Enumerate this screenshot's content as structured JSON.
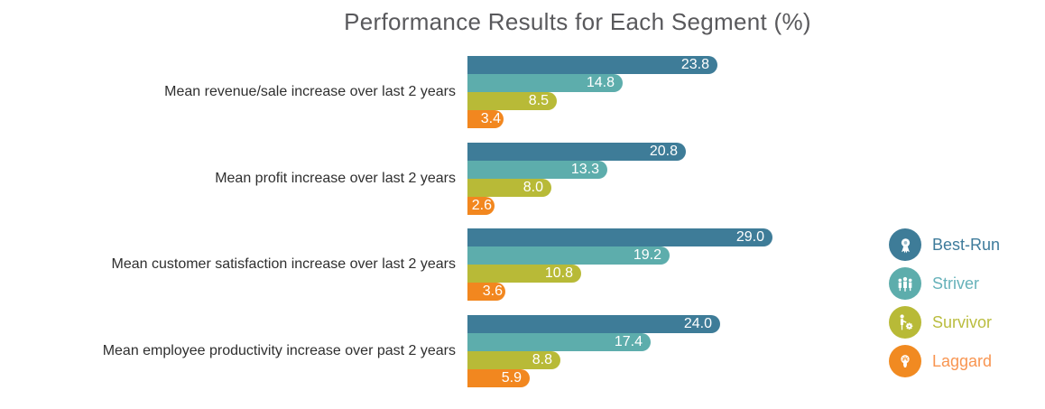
{
  "title": "Performance Results for Each Segment (%)",
  "chart_data": {
    "type": "bar",
    "orientation": "horizontal",
    "title": "Performance Results for Each Segment (%)",
    "categories": [
      "Mean revenue/sale increase over last 2 years",
      "Mean profit increase over last 2 years",
      "Mean customer satisfaction increase over last 2 years",
      "Mean employee productivity increase over past 2 years"
    ],
    "series": [
      {
        "name": "Best-Run",
        "color": "#3e7c98",
        "values": [
          23.8,
          20.8,
          29.0,
          24.0
        ]
      },
      {
        "name": "Striver",
        "color": "#5dadac",
        "values": [
          14.8,
          13.3,
          19.2,
          17.4
        ]
      },
      {
        "name": "Survivor",
        "color": "#b8ba37",
        "values": [
          8.5,
          8.0,
          10.8,
          8.8
        ]
      },
      {
        "name": "Laggard",
        "color": "#f2871f",
        "values": [
          3.4,
          2.6,
          3.6,
          5.9
        ]
      }
    ],
    "value_labels": "inside-end",
    "value_format": "one-decimal",
    "xlim": [
      0,
      29
    ],
    "axes_visible": false,
    "gridlines": false,
    "legend_position": "right"
  },
  "legend": {
    "items": [
      {
        "label": "Best-Run",
        "icon": "medal-icon",
        "circle_color": "#3e7c98",
        "text_color": "#3e7b9b"
      },
      {
        "label": "Striver",
        "icon": "people-group-icon",
        "circle_color": "#5dadac",
        "text_color": "#67b2ba"
      },
      {
        "label": "Survivor",
        "icon": "person-gear-icon",
        "circle_color": "#b8ba37",
        "text_color": "#babd3f"
      },
      {
        "label": "Laggard",
        "icon": "lightbulb-icon",
        "circle_color": "#f18a21",
        "text_color": "#f89551"
      }
    ]
  }
}
